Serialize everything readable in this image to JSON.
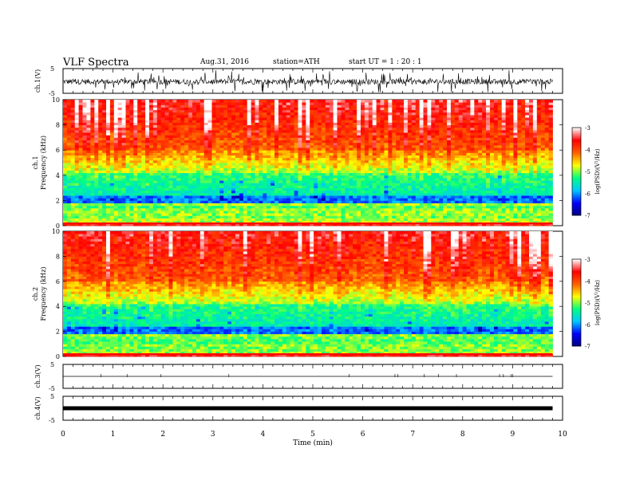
{
  "header": {
    "title": "VLF  Spectra",
    "date": "Aug.31, 2016",
    "station": "station=ATH",
    "start": "start  UT  =   1  : 20 : 1"
  },
  "chart_data": [
    {
      "type": "line",
      "ylabel": "ch.1(V)",
      "ylim": [
        -5,
        5
      ],
      "yticks": [
        "5",
        "-5"
      ],
      "description_series": "noisy waveform near 0 V with spikes",
      "xlim": [
        0,
        10
      ]
    },
    {
      "type": "heatmap",
      "ylabel_channel": "ch.1",
      "ylabel": "Frequency  (kHz)",
      "ylim": [
        0,
        10
      ],
      "yticks": [
        "0",
        "2",
        "4",
        "6",
        "8",
        "10"
      ],
      "xlim": [
        0,
        10
      ],
      "colorbar": {
        "label": "log(PSD)(V²/Hz)",
        "range": [
          -7,
          -3
        ],
        "ticks": [
          "-3",
          "-4",
          "-5",
          "-6",
          "-7"
        ]
      }
    },
    {
      "type": "heatmap",
      "ylabel_channel": "ch.2",
      "ylabel": "Frequency  (kHz)",
      "ylim": [
        0,
        10
      ],
      "yticks": [
        "0",
        "2",
        "4",
        "6",
        "8",
        "10"
      ],
      "xlim": [
        0,
        10
      ],
      "colorbar": {
        "label": "log(PSD)(V²/Hz)",
        "range": [
          -7,
          -3
        ],
        "ticks": [
          "-3",
          "-4",
          "-5",
          "-6",
          "-7"
        ]
      }
    },
    {
      "type": "line",
      "ylabel": "ch.3(V)",
      "ylim": [
        -5,
        5
      ],
      "yticks": [
        "5",
        "-5"
      ],
      "xlim": [
        0,
        10
      ]
    },
    {
      "type": "line",
      "ylabel": "ch.4(V)",
      "ylim": [
        -5,
        5
      ],
      "yticks": [
        "5",
        "-5"
      ],
      "xlim": [
        0,
        10
      ]
    }
  ],
  "xaxis": {
    "label": "Time  (min)",
    "ticks": [
      "0",
      "1",
      "2",
      "3",
      "4",
      "5",
      "6",
      "7",
      "8",
      "9",
      "10"
    ],
    "data_end": 9.8
  },
  "colors": {
    "scale": [
      "#000080",
      "#0000ff",
      "#00c8ff",
      "#00ff80",
      "#ffff00",
      "#ff6000",
      "#ff0000",
      "#ffffff"
    ]
  }
}
